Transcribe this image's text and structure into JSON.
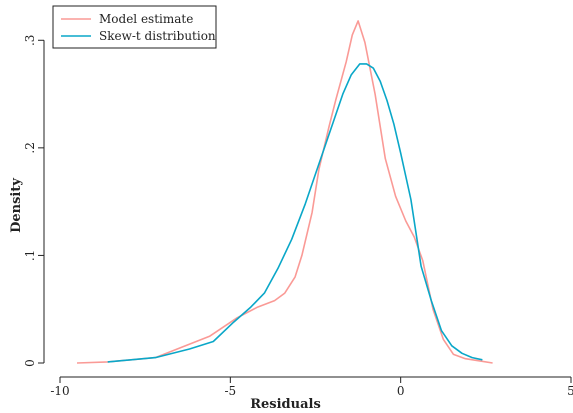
{
  "chart_data": {
    "type": "line",
    "xlabel": "Residuals",
    "ylabel": "Density",
    "xlim": [
      -10,
      5
    ],
    "ylim": [
      0,
      0.33
    ],
    "xticks": [
      -10,
      -5,
      0,
      5
    ],
    "xtick_labels": [
      "-10",
      "-5",
      "0",
      "5"
    ],
    "yticks": [
      0,
      0.1,
      0.2,
      0.3
    ],
    "ytick_labels": [
      "0",
      ".1",
      ".2",
      ".3"
    ],
    "grid": false,
    "legend_position": "top-left",
    "series": [
      {
        "name": "Model estimate",
        "color": "#fa9a96",
        "x": [
          -9.5,
          -8.6,
          -7.2,
          -6.4,
          -5.6,
          -4.8,
          -4.2,
          -3.7,
          -3.4,
          -3.1,
          -2.9,
          -2.6,
          -2.4,
          -2.1,
          -1.9,
          -1.6,
          -1.42,
          -1.25,
          -1.05,
          -0.75,
          -0.45,
          -0.15,
          0.15,
          0.4,
          0.65,
          0.95,
          1.25,
          1.55,
          1.9,
          2.3,
          2.7
        ],
        "y": [
          0.0,
          0.001,
          0.005,
          0.015,
          0.025,
          0.042,
          0.052,
          0.058,
          0.065,
          0.08,
          0.1,
          0.14,
          0.18,
          0.22,
          0.245,
          0.28,
          0.305,
          0.318,
          0.298,
          0.25,
          0.19,
          0.155,
          0.132,
          0.117,
          0.095,
          0.05,
          0.022,
          0.008,
          0.004,
          0.002,
          0.0
        ]
      },
      {
        "name": "Skew-t distribution",
        "color": "#0aa7c8",
        "x": [
          -8.6,
          -7.2,
          -6.2,
          -5.5,
          -4.9,
          -4.4,
          -4.0,
          -3.6,
          -3.2,
          -2.8,
          -2.4,
          -2.0,
          -1.7,
          -1.45,
          -1.2,
          -1.0,
          -0.8,
          -0.6,
          -0.4,
          -0.2,
          0.0,
          0.3,
          0.6,
          0.9,
          1.2,
          1.5,
          1.8,
          2.1,
          2.4
        ],
        "y": [
          0.001,
          0.005,
          0.013,
          0.02,
          0.038,
          0.052,
          0.065,
          0.088,
          0.115,
          0.148,
          0.185,
          0.222,
          0.25,
          0.268,
          0.278,
          0.278,
          0.274,
          0.262,
          0.244,
          0.222,
          0.195,
          0.152,
          0.09,
          0.058,
          0.03,
          0.016,
          0.009,
          0.005,
          0.003
        ]
      }
    ]
  }
}
